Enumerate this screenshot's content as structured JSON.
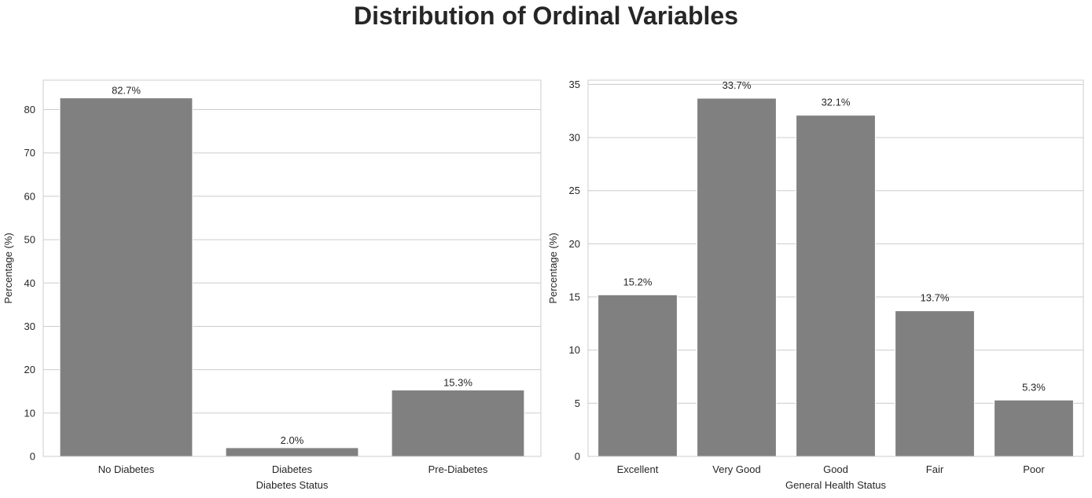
{
  "figure": {
    "title": "Distribution of Ordinal Variables"
  },
  "colors": {
    "bar": "#808080",
    "grid": "#cccccc",
    "spine": "#cccccc",
    "text": "#262626"
  },
  "chart_data": [
    {
      "type": "bar",
      "categories": [
        "No Diabetes",
        "Diabetes",
        "Pre-Diabetes"
      ],
      "values": [
        82.7,
        2.0,
        15.3
      ],
      "data_labels": [
        "82.7%",
        "2.0%",
        "15.3%"
      ],
      "xlabel": "Diabetes Status",
      "ylabel": "Percentage (%)",
      "ylim": [
        0,
        86.8
      ],
      "yticks": [
        0,
        10,
        20,
        30,
        40,
        50,
        60,
        70,
        80
      ],
      "grid": "y"
    },
    {
      "type": "bar",
      "categories": [
        "Excellent",
        "Very Good",
        "Good",
        "Fair",
        "Poor"
      ],
      "values": [
        15.2,
        33.7,
        32.1,
        13.7,
        5.3
      ],
      "data_labels": [
        "15.2%",
        "33.7%",
        "32.1%",
        "13.7%",
        "5.3%"
      ],
      "xlabel": "General Health Status",
      "ylabel": "Percentage (%)",
      "ylim": [
        0,
        35.4
      ],
      "yticks": [
        0,
        5,
        10,
        15,
        20,
        25,
        30,
        35
      ],
      "grid": "y"
    }
  ]
}
